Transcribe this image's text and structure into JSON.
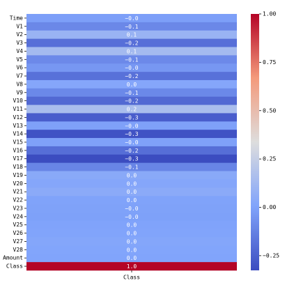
{
  "chart_data": {
    "type": "heatmap",
    "x_categories": [
      "Class"
    ],
    "categories": [
      "Time",
      "V1",
      "V2",
      "V3",
      "V4",
      "V5",
      "V6",
      "V7",
      "V8",
      "V9",
      "V10",
      "V11",
      "V12",
      "V13",
      "V14",
      "V15",
      "V16",
      "V17",
      "V18",
      "V19",
      "V20",
      "V21",
      "V22",
      "V23",
      "V24",
      "V25",
      "V26",
      "V27",
      "V28",
      "Amount",
      "Class"
    ],
    "values": [
      -0.012,
      -0.101,
      0.091,
      -0.193,
      0.133,
      -0.095,
      -0.044,
      -0.187,
      0.02,
      -0.098,
      -0.217,
      0.155,
      -0.261,
      -0.005,
      -0.303,
      -0.004,
      -0.197,
      -0.326,
      -0.111,
      0.035,
      0.02,
      0.04,
      0.001,
      -0.003,
      -0.007,
      0.003,
      0.004,
      0.018,
      0.01,
      0.006,
      1
    ],
    "value_labels": [
      "−0.0",
      "−0.1",
      "0.1",
      "−0.2",
      "0.1",
      "−0.1",
      "−0.0",
      "−0.2",
      "0.0",
      "−0.1",
      "−0.2",
      "0.2",
      "−0.3",
      "−0.0",
      "−0.3",
      "−0.0",
      "−0.2",
      "−0.3",
      "−0.1",
      "0.0",
      "0.0",
      "0.0",
      "0.0",
      "−0.0",
      "−0.0",
      "0.0",
      "0.0",
      "0.0",
      "0.0",
      "0.0",
      "1.0"
    ],
    "colormap": "coolwarm",
    "clim": [
      -0.326,
      1
    ],
    "cticks": [
      {
        "value": 1,
        "label": "1.00"
      },
      {
        "value": 0.75,
        "label": "0.75"
      },
      {
        "value": 0.5,
        "label": "0.50"
      },
      {
        "value": 0.25,
        "label": "0.25"
      },
      {
        "value": 0,
        "label": "0.00"
      },
      {
        "value": -0.25,
        "label": "−0.25"
      }
    ]
  }
}
